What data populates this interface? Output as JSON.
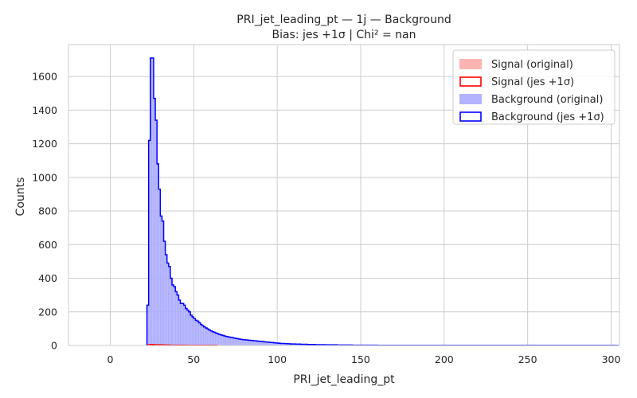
{
  "chart_data": {
    "type": "histogram",
    "title": "PRI_jet_leading_pt — 1j — Background",
    "subtitle": "Bias: jes +1σ | Chi² = nan",
    "xlabel": "PRI_jet_leading_pt",
    "ylabel": "Counts",
    "xlim": [
      -25,
      305
    ],
    "ylim": [
      0,
      1790
    ],
    "xticks": [
      0,
      50,
      100,
      150,
      200,
      250,
      300
    ],
    "yticks": [
      0,
      200,
      400,
      600,
      800,
      1000,
      1200,
      1400,
      1600
    ],
    "grid": true,
    "legend_position": "top-right",
    "bin_width": 1,
    "bin_start": 22,
    "series": [
      {
        "name": "Signal (original)",
        "style": "filled",
        "color": "#ffb3b3",
        "values": [
          3,
          5,
          6,
          6,
          5,
          5,
          5,
          4,
          4,
          4,
          3,
          3,
          3,
          3,
          2,
          2,
          2,
          2,
          2,
          2,
          2,
          2,
          2,
          1,
          1,
          1,
          1,
          1,
          1,
          1,
          1,
          1,
          1,
          1,
          1,
          1,
          1,
          1,
          1,
          1,
          1,
          1
        ]
      },
      {
        "name": "Signal (jes +1σ)",
        "style": "step",
        "color": "#ff0000",
        "values": [
          3,
          5,
          6,
          6,
          5,
          5,
          5,
          4,
          4,
          4,
          3,
          3,
          3,
          3,
          2,
          2,
          2,
          2,
          2,
          2,
          2,
          2,
          2,
          1,
          1,
          1,
          1,
          1,
          1,
          1,
          1,
          1,
          1,
          1,
          1,
          1,
          1,
          1,
          1,
          1,
          1,
          1
        ]
      },
      {
        "name": "Background (original)",
        "style": "filled",
        "color": "#b3b3ff",
        "values": [
          240,
          1220,
          1710,
          1710,
          1470,
          1340,
          1080,
          930,
          770,
          740,
          620,
          540,
          490,
          470,
          400,
          360,
          350,
          320,
          300,
          270,
          250,
          250,
          240,
          220,
          210,
          200,
          180,
          170,
          160,
          150,
          145,
          135,
          125,
          118,
          110,
          104,
          98,
          92,
          87,
          82,
          78,
          74,
          70,
          66,
          63,
          60,
          57,
          54,
          52,
          50,
          48,
          46,
          44,
          42,
          40,
          38,
          36,
          35,
          34,
          33,
          32,
          31,
          30,
          29,
          28,
          27,
          26,
          25,
          24,
          23,
          22,
          21,
          20,
          19,
          18,
          17,
          16,
          15,
          14,
          13
        ]
      },
      {
        "name": "Background (jes +1σ)",
        "style": "step",
        "color": "#0000ff",
        "values": [
          240,
          1220,
          1710,
          1710,
          1470,
          1340,
          1080,
          930,
          770,
          740,
          620,
          540,
          490,
          470,
          400,
          360,
          350,
          320,
          300,
          270,
          250,
          250,
          240,
          220,
          210,
          200,
          180,
          170,
          160,
          150,
          145,
          135,
          125,
          118,
          110,
          104,
          98,
          92,
          87,
          82,
          78,
          74,
          70,
          66,
          63,
          60,
          57,
          54,
          52,
          50,
          48,
          46,
          44,
          42,
          40,
          38,
          36,
          35,
          34,
          33,
          32,
          31,
          30,
          29,
          28,
          27,
          26,
          25,
          24,
          23,
          22,
          21,
          20,
          19,
          18,
          17,
          16,
          15,
          14,
          13
        ]
      }
    ],
    "tail_values": [
      12,
      12,
      11,
      11,
      10,
      10,
      9,
      9,
      9,
      8,
      8,
      8,
      7,
      7,
      7,
      7,
      6,
      6,
      6,
      6,
      6,
      5,
      5,
      5,
      5,
      5,
      5,
      4,
      4,
      4,
      4,
      4,
      4,
      4,
      3,
      3,
      3,
      3,
      3,
      3,
      3,
      3,
      3,
      2,
      2,
      2,
      2,
      2,
      2,
      2,
      2,
      2,
      2,
      2,
      2,
      2,
      2,
      2,
      1,
      1,
      1,
      1,
      1,
      1,
      1,
      1,
      1,
      1,
      1,
      1,
      1,
      1,
      1,
      1,
      1,
      1,
      1,
      1,
      1,
      1,
      1,
      1,
      1,
      1,
      1,
      1,
      1,
      1,
      1,
      1,
      1,
      1,
      1,
      1,
      1,
      1,
      1,
      1,
      1,
      1,
      1,
      1,
      1,
      1,
      1,
      1,
      1,
      1,
      1,
      1,
      1,
      1,
      1,
      1,
      1,
      1,
      1,
      1,
      1,
      1,
      1,
      1,
      1,
      1,
      1,
      1,
      1,
      1,
      1,
      1,
      1,
      1,
      1,
      1,
      1,
      1,
      1,
      1,
      1,
      1,
      1,
      1,
      1,
      1,
      1,
      1,
      1,
      1,
      1,
      1,
      1,
      1,
      1,
      1,
      1,
      1,
      1,
      1,
      1,
      1,
      1,
      1,
      1,
      1,
      1,
      1,
      1,
      1,
      1,
      1,
      1,
      1,
      1,
      1,
      1,
      1,
      1,
      1,
      1,
      1,
      1,
      1,
      1,
      1,
      1,
      1,
      1,
      1,
      1,
      1,
      1,
      1,
      1,
      1,
      1,
      1,
      1,
      1,
      1,
      1,
      1,
      1
    ]
  }
}
